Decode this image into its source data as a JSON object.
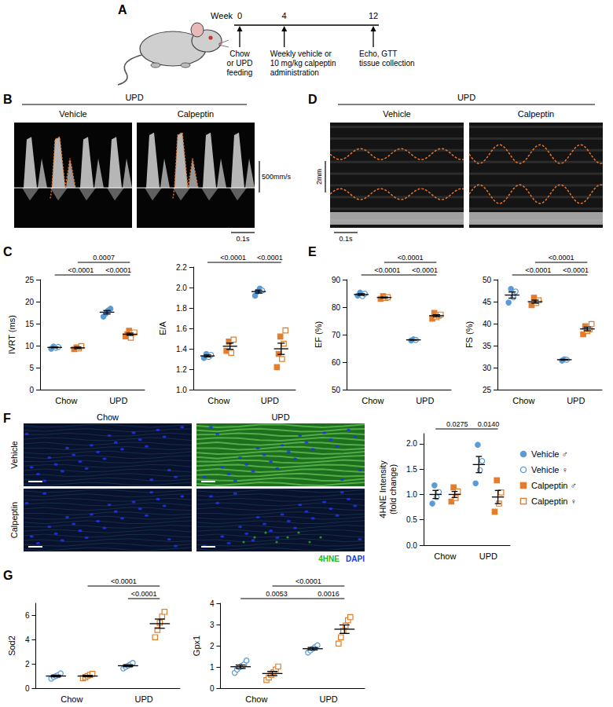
{
  "panels": {
    "A": {
      "letter": "A",
      "timeline": {
        "label": "Week",
        "weeks": [
          0,
          4,
          12
        ]
      },
      "events": [
        {
          "week": 0,
          "lines": [
            "Chow",
            "or UPD",
            "feeding"
          ]
        },
        {
          "week": 4,
          "lines": [
            "Weekly vehicle or",
            "10 mg/kg calpeptin",
            "administration"
          ]
        },
        {
          "week": 12,
          "lines": [
            "Echo, GTT",
            "tissue collection"
          ]
        }
      ]
    },
    "B": {
      "letter": "B",
      "title": "UPD",
      "images": [
        "Vehicle",
        "Calpeptin"
      ],
      "scale_y": "500mm/s",
      "scale_x": "0.1s"
    },
    "C": {
      "letter": "C"
    },
    "D": {
      "letter": "D",
      "title": "UPD",
      "images": [
        "Vehicle",
        "Calpeptin"
      ],
      "scale_y": "2mm",
      "scale_x": "0.1s"
    },
    "E": {
      "letter": "E"
    },
    "F": {
      "letter": "F",
      "columns": [
        "Chow",
        "UPD"
      ],
      "rows": [
        "Vehicle",
        "Calpeptin"
      ],
      "stain": [
        {
          "text": "4HNE",
          "color": "#22b822"
        },
        {
          "text": "DAPI",
          "color": "#2233ee"
        }
      ]
    },
    "G": {
      "letter": "G"
    }
  },
  "legend_entries": [
    {
      "name": "Vehicle ♂",
      "group": "Vehicle",
      "color": "#5b9bd5",
      "marker": "circle"
    },
    {
      "name": "Vehicle ♀",
      "group": "Vehicle",
      "color": "#5b9bd5",
      "marker": "open_circle"
    },
    {
      "name": "Calpeptin ♂",
      "group": "Calpeptin",
      "color": "#e37d2b",
      "marker": "square"
    },
    {
      "name": "Calpeptin ♀",
      "group": "Calpeptin",
      "color": "#e37d2b",
      "marker": "open_square"
    }
  ],
  "chart_data": [
    {
      "type": "scatter",
      "y_label": "IVRT (ms)",
      "categories": [
        "Chow",
        "UPD"
      ],
      "ylim": [
        0,
        25
      ],
      "yticks": [
        0,
        5,
        10,
        15,
        20,
        25
      ],
      "grid": false,
      "series": [
        {
          "name": "Vehicle ♂",
          "values": [
            [
              9.3,
              9.8
            ],
            [
              16.6,
              17.3,
              18.0,
              18.4
            ]
          ]
        },
        {
          "name": "Vehicle ♀",
          "values": [
            [
              9.5,
              9.7
            ],
            []
          ]
        },
        {
          "name": "Calpeptin ♂",
          "values": [
            [
              9.2,
              9.6
            ],
            [
              12.1,
              12.6,
              13.4
            ]
          ]
        },
        {
          "name": "Calpeptin ♀",
          "values": [
            [
              9.4,
              9.9
            ],
            [
              11.8,
              12.9,
              13.0
            ]
          ]
        }
      ],
      "summary": [
        {
          "group": "Vehicle",
          "mean": [
            9.6,
            17.6
          ],
          "sem": [
            0.1,
            0.4
          ]
        },
        {
          "group": "Calpeptin",
          "mean": [
            9.5,
            12.6
          ],
          "sem": [
            0.2,
            0.25
          ]
        }
      ],
      "comparisons": [
        {
          "from": [
            "Chow",
            "Calpeptin"
          ],
          "to": [
            "UPD",
            "Calpeptin"
          ],
          "p": "0.0007"
        },
        {
          "from": [
            "Chow",
            "Vehicle"
          ],
          "to": [
            "UPD",
            "Vehicle"
          ],
          "p": "<0.0001"
        },
        {
          "from": [
            "UPD",
            "Vehicle"
          ],
          "to": [
            "UPD",
            "Calpeptin"
          ],
          "p": "<0.0001"
        }
      ]
    },
    {
      "type": "scatter",
      "y_label": "E/A",
      "categories": [
        "Chow",
        "UPD"
      ],
      "ylim": [
        1.0,
        2.2
      ],
      "yticks": [
        {
          "value": 1.0,
          "label": "1.0"
        },
        1.2,
        1.4,
        1.6,
        1.8,
        {
          "value": 2.0,
          "label": "2.0"
        },
        2.2
      ],
      "grid": false,
      "series": [
        {
          "name": "Vehicle ♂",
          "values": [
            [
              1.31,
              1.35
            ],
            [
              1.92,
              1.96,
              1.99
            ]
          ]
        },
        {
          "name": "Vehicle ♀",
          "values": [
            [
              1.32,
              1.34
            ],
            [
              1.97
            ]
          ]
        },
        {
          "name": "Calpeptin ♂",
          "values": [
            [
              1.38,
              1.47
            ],
            [
              1.22,
              1.35,
              1.52
            ]
          ]
        },
        {
          "name": "Calpeptin ♀",
          "values": [
            [
              1.36,
              1.49
            ],
            [
              1.3,
              1.45,
              1.58
            ]
          ]
        }
      ],
      "summary": [
        {
          "group": "Vehicle",
          "mean": [
            1.33,
            1.96
          ],
          "sem": [
            0.01,
            0.015
          ]
        },
        {
          "group": "Calpeptin",
          "mean": [
            1.425,
            1.4
          ],
          "sem": [
            0.03,
            0.055
          ]
        }
      ],
      "comparisons": [
        {
          "from": [
            "Chow",
            "Vehicle"
          ],
          "to": [
            "UPD",
            "Vehicle"
          ],
          "p": "<0.0001"
        },
        {
          "from": [
            "UPD",
            "Vehicle"
          ],
          "to": [
            "UPD",
            "Calpeptin"
          ],
          "p": "<0.0001"
        }
      ]
    },
    {
      "type": "scatter",
      "y_label": "EF (%)",
      "categories": [
        "Chow",
        "UPD"
      ],
      "ylim": [
        50,
        90
      ],
      "yticks": [
        50,
        60,
        70,
        80,
        90
      ],
      "grid": false,
      "series": [
        {
          "name": "Vehicle ♂",
          "values": [
            [
              84.2,
              85.3
            ],
            [
              67.9,
              68.3
            ]
          ]
        },
        {
          "name": "Vehicle ♀",
          "values": [
            [
              84.0,
              84.9
            ],
            [
              68.1
            ]
          ]
        },
        {
          "name": "Calpeptin ♂",
          "values": [
            [
              83.0,
              84.0
            ],
            [
              75.8,
              77.9
            ]
          ]
        },
        {
          "name": "Calpeptin ♀",
          "values": [
            [
              83.4,
              83.6
            ],
            [
              76.4,
              76.9,
              77.3
            ]
          ]
        }
      ],
      "summary": [
        {
          "group": "Vehicle",
          "mean": [
            84.6,
            68.1
          ],
          "sem": [
            0.3,
            0.1
          ]
        },
        {
          "group": "Calpeptin",
          "mean": [
            83.5,
            76.9
          ],
          "sem": [
            0.2,
            0.35
          ]
        }
      ],
      "comparisons": [
        {
          "from": [
            "Chow",
            "Calpeptin"
          ],
          "to": [
            "UPD",
            "Calpeptin"
          ],
          "p": "<0.0001"
        },
        {
          "from": [
            "Chow",
            "Vehicle"
          ],
          "to": [
            "UPD",
            "Vehicle"
          ],
          "p": "<0.0001"
        },
        {
          "from": [
            "UPD",
            "Vehicle"
          ],
          "to": [
            "UPD",
            "Calpeptin"
          ],
          "p": "<0.0001"
        }
      ]
    },
    {
      "type": "scatter",
      "y_label": "FS (%)",
      "categories": [
        "Chow",
        "UPD"
      ],
      "ylim": [
        25,
        50
      ],
      "yticks": [
        25,
        30,
        35,
        40,
        45,
        50
      ],
      "grid": false,
      "series": [
        {
          "name": "Vehicle ♂",
          "values": [
            [
              44.8,
              47.9
            ],
            [
              31.6,
              31.9
            ]
          ]
        },
        {
          "name": "Vehicle ♀",
          "values": [
            [
              46.0,
              47.3
            ],
            [
              31.8
            ]
          ]
        },
        {
          "name": "Calpeptin ♂",
          "values": [
            [
              44.2,
              45.9
            ],
            [
              37.6,
              39.4
            ]
          ]
        },
        {
          "name": "Calpeptin ♀",
          "values": [
            [
              44.7,
              45.3
            ],
            [
              38.3,
              38.7,
              39.9
            ]
          ]
        }
      ],
      "summary": [
        {
          "group": "Vehicle",
          "mean": [
            46.5,
            31.8
          ],
          "sem": [
            0.7,
            0.1
          ]
        },
        {
          "group": "Calpeptin",
          "mean": [
            45.0,
            38.8
          ],
          "sem": [
            0.35,
            0.4
          ]
        }
      ],
      "comparisons": [
        {
          "from": [
            "Chow",
            "Calpeptin"
          ],
          "to": [
            "UPD",
            "Calpeptin"
          ],
          "p": "<0.0001"
        },
        {
          "from": [
            "Chow",
            "Vehicle"
          ],
          "to": [
            "UPD",
            "Vehicle"
          ],
          "p": "<0.0001"
        },
        {
          "from": [
            "UPD",
            "Vehicle"
          ],
          "to": [
            "UPD",
            "Calpeptin"
          ],
          "p": "<0.0001"
        }
      ]
    },
    {
      "type": "scatter",
      "y_label": "4HNE Intensity (fold change)",
      "categories": [
        "Chow",
        "UPD"
      ],
      "ylim": [
        0,
        2.2
      ],
      "yticks": [
        {
          "value": 0,
          "label": "0.0"
        },
        0.5,
        {
          "value": 1.0,
          "label": "1.0"
        },
        1.5,
        {
          "value": 2.0,
          "label": "2.0"
        }
      ],
      "grid": false,
      "series": [
        {
          "name": "Vehicle ♂",
          "values": [
            [
              0.82,
              1.18
            ],
            [
              1.22,
              1.98
            ]
          ]
        },
        {
          "name": "Vehicle ♀",
          "values": [
            [
              0.95,
              1.05
            ],
            [
              1.48,
              1.66
            ]
          ]
        },
        {
          "name": "Calpeptin ♂",
          "values": [
            [
              0.86,
              1.14
            ],
            [
              0.66,
              1.28
            ]
          ]
        },
        {
          "name": "Calpeptin ♀",
          "values": [
            [
              0.93,
              1.06
            ],
            [
              0.82,
              1.04
            ]
          ]
        }
      ],
      "summary": [
        {
          "group": "Vehicle",
          "mean": [
            1.0,
            1.59
          ],
          "sem": [
            0.08,
            0.16
          ]
        },
        {
          "group": "Calpeptin",
          "mean": [
            1.0,
            0.95
          ],
          "sem": [
            0.06,
            0.13
          ]
        }
      ],
      "comparisons": [
        {
          "from": [
            "Chow",
            "Vehicle"
          ],
          "to": [
            "UPD",
            "Vehicle"
          ],
          "p": "0.0275"
        },
        {
          "from": [
            "UPD",
            "Vehicle"
          ],
          "to": [
            "UPD",
            "Calpeptin"
          ],
          "p": "0.0140"
        }
      ]
    },
    {
      "type": "scatter",
      "y_label": "Sod2",
      "categories": [
        "Chow",
        "UPD"
      ],
      "ylim": [
        0,
        7
      ],
      "yticks": [
        0,
        2,
        4,
        6
      ],
      "grid": false,
      "series": [
        {
          "name": "Vehicle ♀",
          "values": [
            [
              0.78,
              0.92,
              1.0,
              1.08,
              1.22
            ],
            [
              1.62,
              1.75,
              1.85,
              1.95,
              2.08
            ]
          ]
        },
        {
          "name": "Calpeptin ♀",
          "values": [
            [
              0.82,
              0.9,
              1.0,
              1.1,
              1.18
            ],
            [
              4.2,
              4.8,
              5.4,
              5.9,
              6.3
            ]
          ]
        }
      ],
      "summary": [
        {
          "group": "Vehicle",
          "mean": [
            1.0,
            1.85
          ],
          "sem": [
            0.07,
            0.08
          ]
        },
        {
          "group": "Calpeptin",
          "mean": [
            1.0,
            5.32
          ],
          "sem": [
            0.06,
            0.38
          ]
        }
      ],
      "comparisons": [
        {
          "from": [
            "Chow",
            "Calpeptin"
          ],
          "to": [
            "UPD",
            "Calpeptin"
          ],
          "p": "<0.0001"
        },
        {
          "from": [
            "UPD",
            "Vehicle"
          ],
          "to": [
            "UPD",
            "Calpeptin"
          ],
          "p": "<0.0001"
        }
      ]
    },
    {
      "type": "scatter",
      "y_label": "Gpx1",
      "categories": [
        "Chow",
        "UPD"
      ],
      "ylim": [
        0,
        4
      ],
      "yticks": [
        0,
        1,
        2,
        3,
        4
      ],
      "grid": false,
      "series": [
        {
          "name": "Vehicle ♀",
          "values": [
            [
              0.72,
              0.88,
              0.98,
              1.05,
              1.12,
              1.3
            ],
            [
              1.68,
              1.78,
              1.86,
              1.94,
              2.02
            ]
          ]
        },
        {
          "name": "Calpeptin ♀",
          "values": [
            [
              0.38,
              0.5,
              0.62,
              0.75,
              0.88,
              1.02
            ],
            [
              2.1,
              2.4,
              2.7,
              2.95,
              3.2,
              3.35
            ]
          ]
        }
      ],
      "summary": [
        {
          "group": "Vehicle",
          "mean": [
            1.01,
            1.86
          ],
          "sem": [
            0.08,
            0.06
          ]
        },
        {
          "group": "Calpeptin",
          "mean": [
            0.69,
            2.78
          ],
          "sem": [
            0.1,
            0.2
          ]
        }
      ],
      "comparisons": [
        {
          "from": [
            "Chow",
            "Calpeptin"
          ],
          "to": [
            "UPD",
            "Calpeptin"
          ],
          "p": "<0.0001"
        },
        {
          "from": [
            "Chow",
            "Vehicle"
          ],
          "to": [
            "UPD",
            "Vehicle"
          ],
          "p": "0.0053"
        },
        {
          "from": [
            "UPD",
            "Vehicle"
          ],
          "to": [
            "UPD",
            "Calpeptin"
          ],
          "p": "0.0016"
        }
      ]
    }
  ]
}
